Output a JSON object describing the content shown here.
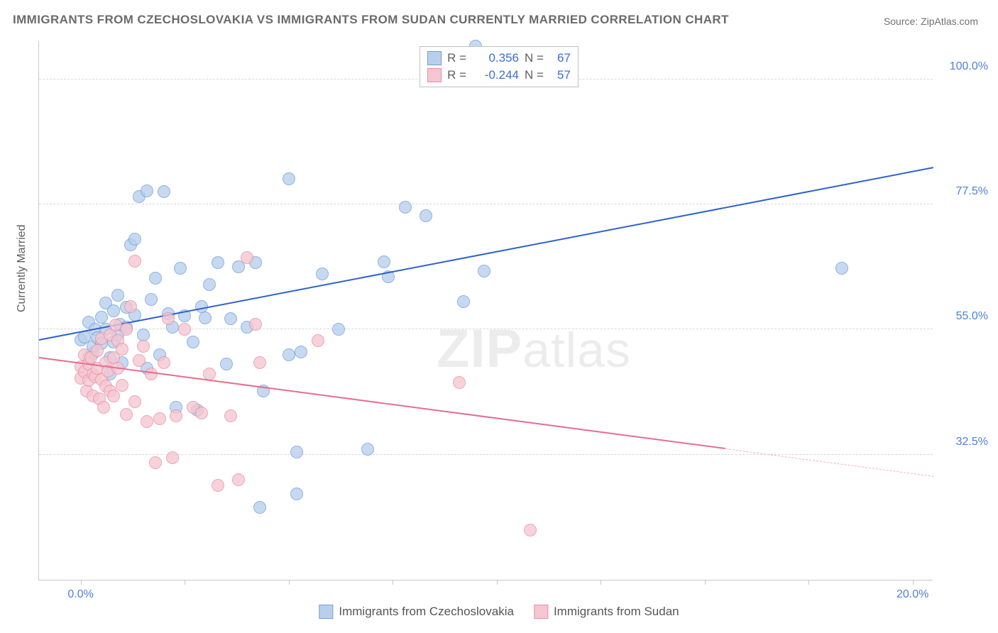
{
  "title": "IMMIGRANTS FROM CZECHOSLOVAKIA VS IMMIGRANTS FROM SUDAN CURRENTLY MARRIED CORRELATION CHART",
  "source": "Source: ZipAtlas.com",
  "watermark": "ZIPatlas",
  "chart": {
    "type": "scatter",
    "ylabel": "Currently Married",
    "xlim": [
      -1,
      20.5
    ],
    "ylim": [
      10,
      107
    ],
    "xticks": [
      0,
      2.5,
      5,
      7.5,
      10,
      12.5,
      15,
      17.5,
      20
    ],
    "xtick_labels": {
      "0": "0.0%",
      "20": "20.0%"
    },
    "yticks": [
      32.5,
      55.0,
      77.5,
      100.0
    ],
    "ytick_labels": [
      "32.5%",
      "55.0%",
      "77.5%",
      "100.0%"
    ],
    "grid_color": "#d8d8d8",
    "axis_color": "#c9c9c9",
    "tick_label_color": "#4f7fd6",
    "point_radius": 9,
    "series": [
      {
        "name": "Immigrants from Czechoslovakia",
        "fill": "#b8cfec",
        "stroke": "#6f9fd8",
        "line_color": "#2e62c9",
        "r": "0.356",
        "n": "67",
        "trend": {
          "x1": -1,
          "y1": 53.0,
          "x2": 20.5,
          "y2": 84.0,
          "dash_from_x": null
        },
        "points": [
          [
            0.0,
            53.2
          ],
          [
            0.1,
            53.7
          ],
          [
            0.2,
            50.1
          ],
          [
            0.2,
            56.3
          ],
          [
            0.3,
            50.7
          ],
          [
            0.3,
            52.0
          ],
          [
            0.35,
            55.0
          ],
          [
            0.4,
            53.5
          ],
          [
            0.5,
            52.5
          ],
          [
            0.5,
            57.2
          ],
          [
            0.6,
            55.1
          ],
          [
            0.6,
            59.8
          ],
          [
            0.7,
            47.0
          ],
          [
            0.7,
            50.0
          ],
          [
            0.8,
            52.8
          ],
          [
            0.8,
            58.4
          ],
          [
            0.9,
            54.0
          ],
          [
            0.9,
            61.2
          ],
          [
            0.95,
            56.0
          ],
          [
            1.0,
            49.0
          ],
          [
            1.1,
            59.0
          ],
          [
            1.1,
            55.5
          ],
          [
            1.2,
            70.2
          ],
          [
            1.3,
            57.6
          ],
          [
            1.3,
            71.3
          ],
          [
            1.4,
            78.9
          ],
          [
            1.5,
            54.0
          ],
          [
            1.6,
            48.0
          ],
          [
            1.6,
            80.0
          ],
          [
            1.7,
            60.4
          ],
          [
            1.8,
            64.3
          ],
          [
            1.9,
            50.5
          ],
          [
            2.0,
            79.8
          ],
          [
            2.1,
            57.9
          ],
          [
            2.2,
            55.5
          ],
          [
            2.3,
            41.0
          ],
          [
            2.4,
            66.0
          ],
          [
            2.5,
            57.5
          ],
          [
            2.7,
            52.8
          ],
          [
            2.8,
            40.5
          ],
          [
            2.9,
            59.2
          ],
          [
            3.0,
            57.1
          ],
          [
            3.1,
            63.1
          ],
          [
            3.3,
            67.0
          ],
          [
            3.5,
            48.8
          ],
          [
            3.6,
            57.0
          ],
          [
            3.8,
            66.3
          ],
          [
            4.0,
            55.5
          ],
          [
            4.2,
            67.0
          ],
          [
            4.3,
            23.0
          ],
          [
            4.4,
            44.0
          ],
          [
            5.0,
            82.1
          ],
          [
            5.0,
            50.5
          ],
          [
            5.2,
            33.0
          ],
          [
            5.2,
            25.5
          ],
          [
            5.3,
            51.0
          ],
          [
            5.8,
            65.0
          ],
          [
            6.2,
            55.0
          ],
          [
            6.9,
            33.5
          ],
          [
            7.3,
            67.2
          ],
          [
            7.4,
            64.5
          ],
          [
            7.8,
            77.0
          ],
          [
            8.3,
            75.5
          ],
          [
            9.2,
            60.0
          ],
          [
            9.5,
            106.0
          ],
          [
            9.7,
            65.5
          ],
          [
            18.3,
            66.0
          ]
        ]
      },
      {
        "name": "Immigrants from Sudan",
        "fill": "#f5c6d1",
        "stroke": "#e68fa5",
        "line_color": "#e66d8d",
        "r": "-0.244",
        "n": "57",
        "trend": {
          "x1": -1,
          "y1": 49.8,
          "x2": 20.5,
          "y2": 28.5,
          "dash_from_x": 15.5
        },
        "points": [
          [
            0.0,
            48.3
          ],
          [
            0.0,
            46.2
          ],
          [
            0.1,
            50.5
          ],
          [
            0.1,
            47.4
          ],
          [
            0.15,
            44.0
          ],
          [
            0.2,
            45.9
          ],
          [
            0.2,
            48.8
          ],
          [
            0.25,
            50.0
          ],
          [
            0.3,
            47.0
          ],
          [
            0.3,
            43.0
          ],
          [
            0.35,
            46.5
          ],
          [
            0.4,
            48.1
          ],
          [
            0.4,
            51.2
          ],
          [
            0.45,
            42.5
          ],
          [
            0.5,
            53.4
          ],
          [
            0.5,
            46.0
          ],
          [
            0.55,
            41.0
          ],
          [
            0.6,
            44.9
          ],
          [
            0.6,
            49.0
          ],
          [
            0.65,
            47.5
          ],
          [
            0.7,
            43.9
          ],
          [
            0.7,
            54.0
          ],
          [
            0.8,
            49.9
          ],
          [
            0.8,
            43.0
          ],
          [
            0.85,
            55.8
          ],
          [
            0.9,
            48.0
          ],
          [
            0.9,
            53.0
          ],
          [
            1.0,
            51.5
          ],
          [
            1.0,
            45.0
          ],
          [
            1.1,
            39.8
          ],
          [
            1.1,
            55.0
          ],
          [
            1.2,
            59.1
          ],
          [
            1.3,
            42.0
          ],
          [
            1.3,
            67.3
          ],
          [
            1.4,
            49.5
          ],
          [
            1.5,
            52.0
          ],
          [
            1.6,
            38.5
          ],
          [
            1.7,
            47.0
          ],
          [
            1.8,
            31.0
          ],
          [
            1.9,
            39.0
          ],
          [
            2.0,
            49.0
          ],
          [
            2.1,
            57.0
          ],
          [
            2.2,
            32.0
          ],
          [
            2.3,
            39.5
          ],
          [
            2.5,
            55.0
          ],
          [
            2.7,
            41.0
          ],
          [
            2.9,
            40.0
          ],
          [
            3.1,
            47.0
          ],
          [
            3.3,
            27.0
          ],
          [
            3.6,
            39.5
          ],
          [
            3.8,
            28.0
          ],
          [
            4.0,
            68.0
          ],
          [
            4.2,
            56.0
          ],
          [
            4.3,
            49.0
          ],
          [
            5.7,
            53.0
          ],
          [
            9.1,
            45.5
          ],
          [
            10.8,
            19.0
          ]
        ]
      }
    ],
    "legend_top": {
      "border_color": "#c0c0c0",
      "label_color": "#606060",
      "value_color": "#3b6fd0"
    }
  }
}
